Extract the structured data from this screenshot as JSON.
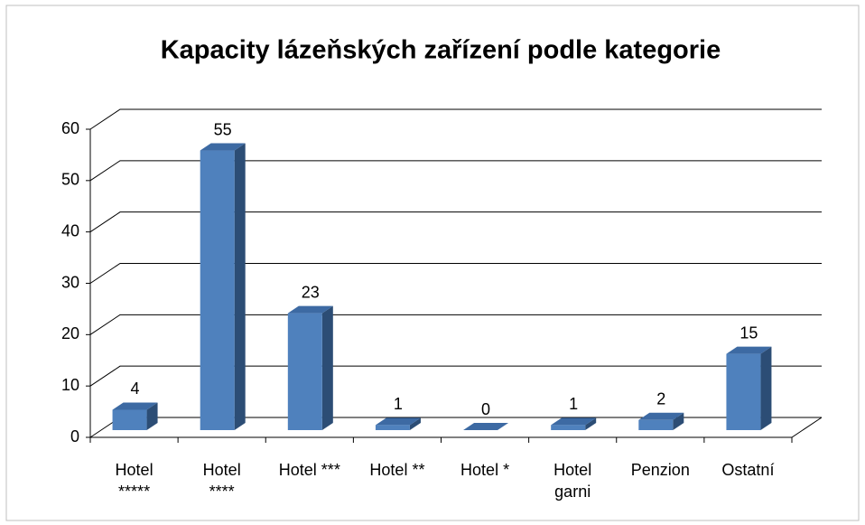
{
  "chart_data": {
    "type": "bar3d",
    "title": "Kapacity lázeňských zařízení podle kategorie",
    "categories": [
      "Hotel *****",
      "Hotel ****",
      "Hotel ***",
      "Hotel **",
      "Hotel *",
      "Hotel garni",
      "Penzion",
      "Ostatní"
    ],
    "values": [
      4,
      55,
      23,
      1,
      0,
      1,
      2,
      15
    ],
    "color": "#4f81bd",
    "ylim": [
      0,
      60
    ],
    "yticks": [
      0,
      10,
      20,
      30,
      40,
      50,
      60
    ],
    "grid": true
  }
}
